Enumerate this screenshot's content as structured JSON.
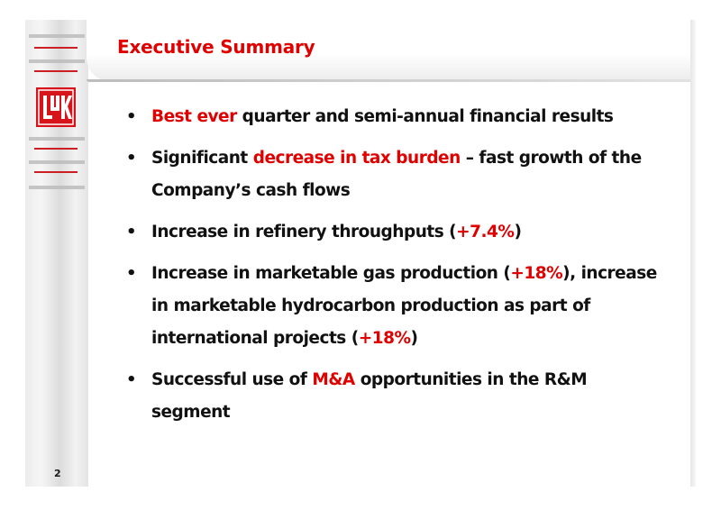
{
  "slide": {
    "title": "Executive Summary",
    "page_number": "2",
    "logo_icon": "lukoil-logo-icon",
    "bullet_glyph": "•",
    "accent_color": "#e00000"
  },
  "bullets": [
    {
      "parts": [
        {
          "text": "Best ever",
          "hl": true
        },
        {
          "text": " quarter and semi-annual financial results",
          "hl": false
        }
      ]
    },
    {
      "parts": [
        {
          "text": "Significant ",
          "hl": false
        },
        {
          "text": "decrease in tax burden",
          "hl": true
        },
        {
          "text": " – fast growth of the Company’s cash flows",
          "hl": false
        }
      ]
    },
    {
      "parts": [
        {
          "text": "Increase in refinery throughputs (",
          "hl": false
        },
        {
          "text": "+7.4%",
          "hl": true
        },
        {
          "text": ")",
          "hl": false
        }
      ]
    },
    {
      "parts": [
        {
          "text": "Increase in marketable gas production (",
          "hl": false
        },
        {
          "text": "+18%",
          "hl": true
        },
        {
          "text": "), increase in marketable hydrocarbon production as part of international projects (",
          "hl": false
        },
        {
          "text": "+18%",
          "hl": true
        },
        {
          "text": ")",
          "hl": false
        }
      ]
    },
    {
      "parts": [
        {
          "text": "Successful use of ",
          "hl": false
        },
        {
          "text": "M&A",
          "hl": true
        },
        {
          "text": " opportunities in the R&M segment",
          "hl": false
        }
      ]
    }
  ]
}
